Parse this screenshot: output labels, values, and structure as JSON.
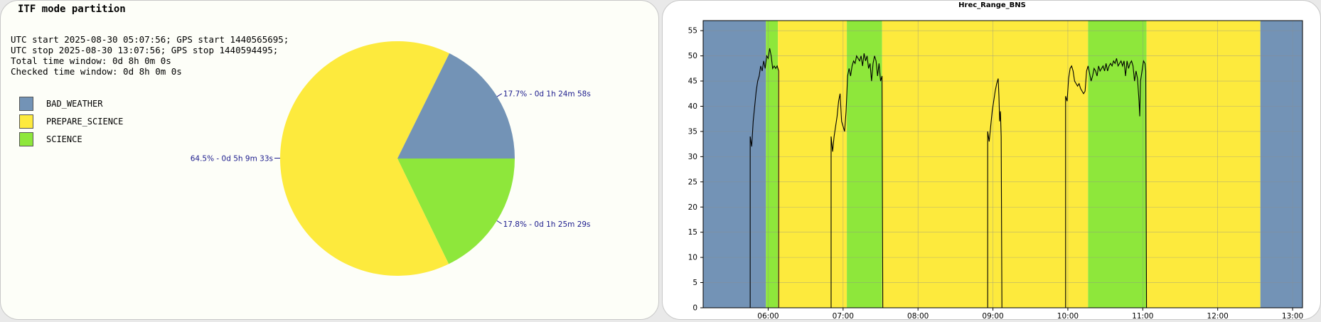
{
  "left": {
    "title": "ITF mode partition",
    "info": [
      "UTC start 2025-08-30 05:07:56; GPS start 1440565695;",
      "UTC stop 2025-08-30 13:07:56; GPS stop 1440594495;",
      "Total time window: 0d 8h 0m 0s",
      "Checked time window: 0d 8h 0m 0s"
    ]
  },
  "chart_data": [
    {
      "type": "pie",
      "title": "ITF mode partition",
      "legend_position": "left",
      "slices": [
        {
          "name": "BAD_WEATHER",
          "value": 17.7,
          "label": "17.7% - 0d 1h 24m 58s",
          "color": "#7393b6"
        },
        {
          "name": "PREPARE_SCIENCE",
          "value": 64.5,
          "label": "64.5% - 0d 5h 9m 33s",
          "color": "#fdea3d"
        },
        {
          "name": "SCIENCE",
          "value": 17.8,
          "label": "17.8% - 0d 1h 25m 29s",
          "color": "#8ee73b"
        }
      ],
      "order_clockwise_from_east": [
        "SCIENCE",
        "PREPARE_SCIENCE",
        "BAD_WEATHER"
      ]
    },
    {
      "type": "line",
      "title": "Hrec_Range_BNS",
      "xlabel": "",
      "ylabel": "",
      "grid": true,
      "x_unit": "hour of day (UTC)",
      "xlim": [
        5.1322,
        13.1322
      ],
      "ylim": [
        0,
        57
      ],
      "xticks": [
        6,
        7,
        8,
        9,
        10,
        11,
        12,
        13
      ],
      "xtick_labels": [
        "06:00",
        "07:00",
        "08:00",
        "09:00",
        "10:00",
        "11:00",
        "12:00",
        "13:00"
      ],
      "yticks": [
        0,
        5,
        10,
        15,
        20,
        25,
        30,
        35,
        40,
        45,
        50,
        55
      ],
      "background_bands": [
        {
          "mode": "BAD_WEATHER",
          "from": 5.1322,
          "to": 5.97,
          "color": "#7393b6"
        },
        {
          "mode": "SCIENCE",
          "from": 5.97,
          "to": 6.13,
          "color": "#8ee73b"
        },
        {
          "mode": "PREPARE_SCIENCE",
          "from": 6.13,
          "to": 7.05,
          "color": "#fdea3d"
        },
        {
          "mode": "SCIENCE",
          "from": 7.05,
          "to": 7.52,
          "color": "#8ee73b"
        },
        {
          "mode": "PREPARE_SCIENCE",
          "from": 7.52,
          "to": 10.27,
          "color": "#fdea3d"
        },
        {
          "mode": "SCIENCE",
          "from": 10.27,
          "to": 11.05,
          "color": "#8ee73b"
        },
        {
          "mode": "PREPARE_SCIENCE",
          "from": 11.05,
          "to": 12.57,
          "color": "#fdea3d"
        },
        {
          "mode": "BAD_WEATHER",
          "from": 12.57,
          "to": 13.1322,
          "color": "#7393b6"
        }
      ],
      "series": [
        {
          "segments": [
            [
              [
                5.76,
                0
              ],
              [
                5.76,
                34
              ],
              [
                5.78,
                32
              ],
              [
                5.8,
                37
              ],
              [
                5.82,
                40
              ],
              [
                5.84,
                43
              ],
              [
                5.86,
                45
              ],
              [
                5.88,
                46
              ],
              [
                5.9,
                48
              ],
              [
                5.92,
                47
              ],
              [
                5.94,
                49
              ],
              [
                5.96,
                47.5
              ],
              [
                5.98,
                50
              ],
              [
                6.0,
                49.5
              ],
              [
                6.02,
                51.5
              ],
              [
                6.04,
                50
              ],
              [
                6.06,
                47.5
              ],
              [
                6.08,
                48
              ],
              [
                6.1,
                47.5
              ],
              [
                6.12,
                48
              ],
              [
                6.14,
                47
              ],
              [
                6.14,
                0
              ]
            ],
            [
              [
                6.84,
                0
              ],
              [
                6.84,
                34
              ],
              [
                6.86,
                31
              ],
              [
                6.88,
                34
              ],
              [
                6.9,
                36
              ],
              [
                6.92,
                38
              ],
              [
                6.94,
                41
              ],
              [
                6.96,
                42.5
              ],
              [
                6.98,
                37
              ],
              [
                7.0,
                36
              ],
              [
                7.02,
                35
              ],
              [
                7.04,
                39
              ],
              [
                7.06,
                46
              ],
              [
                7.08,
                47.5
              ],
              [
                7.1,
                46
              ],
              [
                7.12,
                48
              ],
              [
                7.14,
                49
              ],
              [
                7.16,
                48.5
              ],
              [
                7.18,
                50
              ],
              [
                7.2,
                49.5
              ],
              [
                7.22,
                49
              ],
              [
                7.24,
                50
              ],
              [
                7.26,
                48
              ],
              [
                7.28,
                50.5
              ],
              [
                7.3,
                49
              ],
              [
                7.32,
                50
              ],
              [
                7.34,
                47.5
              ],
              [
                7.36,
                48.5
              ],
              [
                7.38,
                45
              ],
              [
                7.4,
                48.5
              ],
              [
                7.42,
                50
              ],
              [
                7.44,
                49
              ],
              [
                7.46,
                46
              ],
              [
                7.48,
                48.5
              ],
              [
                7.5,
                45
              ],
              [
                7.52,
                46
              ],
              [
                7.53,
                0
              ]
            ],
            [
              [
                8.93,
                0
              ],
              [
                8.93,
                35
              ],
              [
                8.95,
                33
              ],
              [
                8.97,
                36
              ],
              [
                8.99,
                39
              ],
              [
                9.01,
                41
              ],
              [
                9.03,
                43
              ],
              [
                9.05,
                44.5
              ],
              [
                9.07,
                45.5
              ],
              [
                9.08,
                42
              ],
              [
                9.09,
                37
              ],
              [
                9.1,
                39
              ],
              [
                9.11,
                34
              ],
              [
                9.12,
                0
              ]
            ],
            [
              [
                9.97,
                0
              ],
              [
                9.97,
                42
              ],
              [
                9.99,
                41
              ],
              [
                10.01,
                45.5
              ],
              [
                10.03,
                47.5
              ],
              [
                10.05,
                48
              ],
              [
                10.07,
                47
              ],
              [
                10.09,
                45
              ],
              [
                10.11,
                44.5
              ],
              [
                10.13,
                44
              ],
              [
                10.15,
                44.5
              ],
              [
                10.17,
                43.5
              ],
              [
                10.19,
                43
              ],
              [
                10.21,
                42.5
              ],
              [
                10.23,
                43
              ],
              [
                10.25,
                47
              ],
              [
                10.27,
                48
              ],
              [
                10.29,
                46.5
              ],
              [
                10.31,
                45
              ],
              [
                10.33,
                46
              ],
              [
                10.35,
                47.5
              ],
              [
                10.37,
                47
              ],
              [
                10.39,
                46
              ],
              [
                10.41,
                48
              ],
              [
                10.43,
                47
              ],
              [
                10.45,
                47.5
              ],
              [
                10.47,
                48
              ],
              [
                10.49,
                47
              ],
              [
                10.51,
                48.5
              ],
              [
                10.53,
                47
              ],
              [
                10.55,
                48
              ],
              [
                10.57,
                48.5
              ],
              [
                10.59,
                48
              ],
              [
                10.61,
                49
              ],
              [
                10.63,
                48.5
              ],
              [
                10.65,
                49.5
              ],
              [
                10.67,
                48
              ],
              [
                10.69,
                48.5
              ],
              [
                10.71,
                49
              ],
              [
                10.73,
                48
              ],
              [
                10.75,
                49
              ],
              [
                10.77,
                46
              ],
              [
                10.79,
                49
              ],
              [
                10.81,
                47.5
              ],
              [
                10.83,
                48.5
              ],
              [
                10.85,
                49
              ],
              [
                10.87,
                48
              ],
              [
                10.89,
                45
              ],
              [
                10.91,
                47
              ],
              [
                10.93,
                45.5
              ],
              [
                10.95,
                41
              ],
              [
                10.96,
                38
              ],
              [
                10.97,
                45
              ],
              [
                10.99,
                47
              ],
              [
                11.01,
                49
              ],
              [
                11.03,
                48.5
              ],
              [
                11.04,
                47
              ],
              [
                11.05,
                0
              ]
            ]
          ]
        }
      ]
    }
  ]
}
